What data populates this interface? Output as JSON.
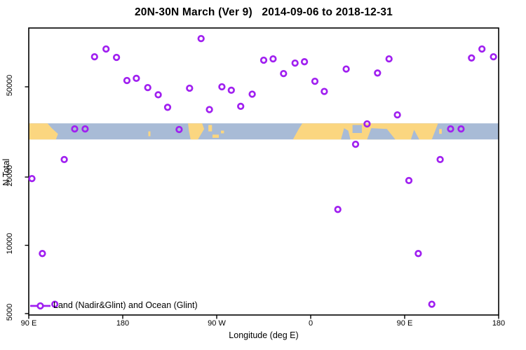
{
  "title": "20N-30N March (Ver 9)   2014-09-06 to 2018-12-31",
  "axes": {
    "y_label": "N Total",
    "x_label": "Longitude (deg E)",
    "y_ticks": [
      {
        "label": "50000",
        "value": 50000
      },
      {
        "label": "20000",
        "value": 20000
      },
      {
        "label": "10000",
        "value": 10000
      },
      {
        "label": "5000",
        "value": 5000
      }
    ],
    "x_ticks": [
      {
        "label": "90 E",
        "deg": 90
      },
      {
        "label": "180",
        "deg": 180
      },
      {
        "label": "90 W",
        "deg": 270
      },
      {
        "label": "0",
        "deg": 360
      },
      {
        "label": "90 E",
        "deg": 450
      },
      {
        "label": "180",
        "deg": 540
      }
    ]
  },
  "legend": {
    "label": "Land (Nadir&Glint) and Ocean (Glint)"
  },
  "colors": {
    "point": "#A020F0",
    "land": "#FBD680",
    "ocean": "#A8BBD6",
    "axis": "#000000"
  },
  "chart_data": {
    "type": "scatter",
    "title": "20N-30N March (Ver 9)   2014-09-06 to 2018-12-31",
    "xlabel": "Longitude (deg E)",
    "ylabel": "N Total",
    "y_scale": "log",
    "ylim": [
      4900,
      91000
    ],
    "x_axis_deg_range": [
      90,
      540
    ],
    "x_note": "axis runs 90E eastward around the globe to 180 (90E-180 segment plotted twice)",
    "grid": false,
    "legend_position": "bottom-left",
    "points": [
      {
        "deg": 93,
        "lon": "93E",
        "n": 19700
      },
      {
        "deg": 103,
        "lon": "103E",
        "n": 9200
      },
      {
        "deg": 115,
        "lon": "115E",
        "n": 5500
      },
      {
        "deg": 124,
        "lon": "124E",
        "n": 23900
      },
      {
        "deg": 134,
        "lon": "134E",
        "n": 32600
      },
      {
        "deg": 144,
        "lon": "144E",
        "n": 32600
      },
      {
        "deg": 153,
        "lon": "153E",
        "n": 67800
      },
      {
        "deg": 164,
        "lon": "164E",
        "n": 73400
      },
      {
        "deg": 174,
        "lon": "174E",
        "n": 67400
      },
      {
        "deg": 184,
        "lon": "176W",
        "n": 53300
      },
      {
        "deg": 193,
        "lon": "167W",
        "n": 54500
      },
      {
        "deg": 204,
        "lon": "156W",
        "n": 49600
      },
      {
        "deg": 214,
        "lon": "146W",
        "n": 46100
      },
      {
        "deg": 223,
        "lon": "137W",
        "n": 40600
      },
      {
        "deg": 234,
        "lon": "126W",
        "n": 32400
      },
      {
        "deg": 244,
        "lon": "116W",
        "n": 49300
      },
      {
        "deg": 255,
        "lon": "105W",
        "n": 81600
      },
      {
        "deg": 263,
        "lon": "97W",
        "n": 39700
      },
      {
        "deg": 275,
        "lon": "85W",
        "n": 50000
      },
      {
        "deg": 284,
        "lon": "76W",
        "n": 48300
      },
      {
        "deg": 293,
        "lon": "67W",
        "n": 41000
      },
      {
        "deg": 304,
        "lon": "56W",
        "n": 46400
      },
      {
        "deg": 315,
        "lon": "45W",
        "n": 65500
      },
      {
        "deg": 324,
        "lon": "36W",
        "n": 66400
      },
      {
        "deg": 334,
        "lon": "26W",
        "n": 57200
      },
      {
        "deg": 345,
        "lon": "15W",
        "n": 63600
      },
      {
        "deg": 354,
        "lon": "6W",
        "n": 64500
      },
      {
        "deg": 364,
        "lon": "4E",
        "n": 52900
      },
      {
        "deg": 373,
        "lon": "13E",
        "n": 47700
      },
      {
        "deg": 386,
        "lon": "26E",
        "n": 14400
      },
      {
        "deg": 394,
        "lon": "34E",
        "n": 59900
      },
      {
        "deg": 403,
        "lon": "43E",
        "n": 27900
      },
      {
        "deg": 414,
        "lon": "54E",
        "n": 34300
      },
      {
        "deg": 424,
        "lon": "64E",
        "n": 57500
      },
      {
        "deg": 435,
        "lon": "75E",
        "n": 66400
      },
      {
        "deg": 443,
        "lon": "83E",
        "n": 37600
      },
      {
        "deg": 454,
        "lon": "94E",
        "n": 19300
      },
      {
        "deg": 463,
        "lon": "103E",
        "n": 9200
      },
      {
        "deg": 476,
        "lon": "116E",
        "n": 5500
      },
      {
        "deg": 484,
        "lon": "124E",
        "n": 23900
      },
      {
        "deg": 494,
        "lon": "134E",
        "n": 32600
      },
      {
        "deg": 504,
        "lon": "144E",
        "n": 32600
      },
      {
        "deg": 514,
        "lon": "154E",
        "n": 67000
      },
      {
        "deg": 524,
        "lon": "164E",
        "n": 73400
      },
      {
        "deg": 535,
        "lon": "175E",
        "n": 67800
      }
    ],
    "map_band": {
      "description": "20N-30N world map strip drawn across plot",
      "n_top": 34500,
      "n_bottom": 29300,
      "land_polygons": [
        {
          "name": "asia-east",
          "pts": [
            [
              90,
              0
            ],
            [
              108,
              0
            ],
            [
              112,
              0.3
            ],
            [
              118,
              0.65
            ],
            [
              116,
              1
            ],
            [
              90,
              1
            ]
          ]
        },
        {
          "name": "hawaii",
          "pts": [
            [
              204.5,
              0.5
            ],
            [
              206.5,
              0.5
            ],
            [
              206.5,
              0.8
            ],
            [
              204.5,
              0.8
            ]
          ]
        },
        {
          "name": "mexico",
          "pts": [
            [
              242.5,
              0
            ],
            [
              256,
              0
            ],
            [
              258,
              0.35
            ],
            [
              252,
              1
            ],
            [
              245,
              1
            ],
            [
              243.5,
              0.5
            ]
          ]
        },
        {
          "name": "florida",
          "pts": [
            [
              262,
              0.1
            ],
            [
              265.5,
              0.1
            ],
            [
              265.5,
              0.5
            ],
            [
              262,
              0.5
            ]
          ]
        },
        {
          "name": "cuba",
          "pts": [
            [
              266,
              0.7
            ],
            [
              272,
              0.7
            ],
            [
              272,
              0.9
            ],
            [
              266,
              0.9
            ]
          ]
        },
        {
          "name": "bahamas",
          "pts": [
            [
              274,
              0.45
            ],
            [
              277,
              0.45
            ],
            [
              277,
              0.62
            ],
            [
              274,
              0.62
            ]
          ]
        },
        {
          "name": "africa-asia",
          "pts": [
            [
              352,
              0
            ],
            [
              482,
              0
            ],
            [
              476,
              1
            ],
            [
              343,
              1
            ],
            [
              349,
              0.3
            ]
          ]
        },
        {
          "name": "taiwan",
          "pts": [
            [
              483,
              0.35
            ],
            [
              485.5,
              0.35
            ],
            [
              485.5,
              0.65
            ],
            [
              483,
              0.65
            ]
          ]
        }
      ],
      "ocean_notches": [
        {
          "name": "red-sea",
          "pts": [
            [
              389,
              1
            ],
            [
              392,
              0.3
            ],
            [
              396,
              0.45
            ],
            [
              398,
              1
            ]
          ]
        },
        {
          "name": "persian-gulf",
          "pts": [
            [
              400,
              0.1
            ],
            [
              409,
              0.1
            ],
            [
              409,
              0.6
            ],
            [
              400,
              0.6
            ]
          ]
        },
        {
          "name": "arabian-sea",
          "pts": [
            [
              414,
              1
            ],
            [
              418,
              0.3
            ],
            [
              433,
              0.35
            ],
            [
              441,
              1
            ]
          ]
        },
        {
          "name": "bay-of-bengal",
          "pts": [
            [
              456,
              1
            ],
            [
              459,
              0.4
            ],
            [
              464,
              1
            ]
          ]
        }
      ]
    }
  }
}
